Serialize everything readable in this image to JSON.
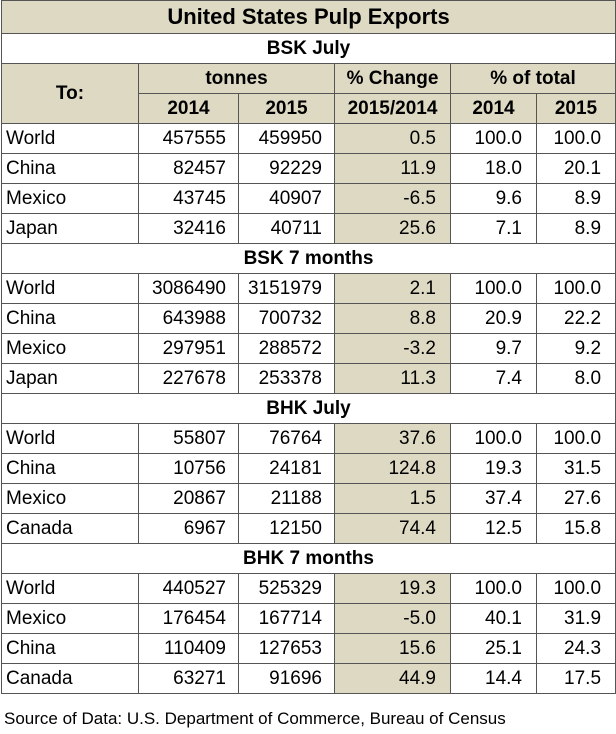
{
  "title": "United States Pulp Exports",
  "headers": {
    "to": "To:",
    "tonnes": "tonnes",
    "pct_change": "% Change",
    "pct_total": "% of total",
    "y2014": "2014",
    "y2015": "2015",
    "period": "2015/2014"
  },
  "sections": [
    {
      "name": "BSK July",
      "rows": [
        {
          "country": "World",
          "t2014": "457555",
          "t2015": "459950",
          "change": "0.5",
          "s2014": "100.0",
          "s2015": "100.0"
        },
        {
          "country": "China",
          "t2014": "82457",
          "t2015": "92229",
          "change": "11.9",
          "s2014": "18.0",
          "s2015": "20.1"
        },
        {
          "country": "Mexico",
          "t2014": "43745",
          "t2015": "40907",
          "change": "-6.5",
          "s2014": "9.6",
          "s2015": "8.9"
        },
        {
          "country": "Japan",
          "t2014": "32416",
          "t2015": "40711",
          "change": "25.6",
          "s2014": "7.1",
          "s2015": "8.9"
        }
      ]
    },
    {
      "name": "BSK 7 months",
      "rows": [
        {
          "country": "World",
          "t2014": "3086490",
          "t2015": "3151979",
          "change": "2.1",
          "s2014": "100.0",
          "s2015": "100.0"
        },
        {
          "country": "China",
          "t2014": "643988",
          "t2015": "700732",
          "change": "8.8",
          "s2014": "20.9",
          "s2015": "22.2"
        },
        {
          "country": "Mexico",
          "t2014": "297951",
          "t2015": "288572",
          "change": "-3.2",
          "s2014": "9.7",
          "s2015": "9.2"
        },
        {
          "country": "Japan",
          "t2014": "227678",
          "t2015": "253378",
          "change": "11.3",
          "s2014": "7.4",
          "s2015": "8.0"
        }
      ]
    },
    {
      "name": "BHK July",
      "rows": [
        {
          "country": "World",
          "t2014": "55807",
          "t2015": "76764",
          "change": "37.6",
          "s2014": "100.0",
          "s2015": "100.0"
        },
        {
          "country": "China",
          "t2014": "10756",
          "t2015": "24181",
          "change": "124.8",
          "s2014": "19.3",
          "s2015": "31.5"
        },
        {
          "country": "Mexico",
          "t2014": "20867",
          "t2015": "21188",
          "change": "1.5",
          "s2014": "37.4",
          "s2015": "27.6"
        },
        {
          "country": "Canada",
          "t2014": "6967",
          "t2015": "12150",
          "change": "74.4",
          "s2014": "12.5",
          "s2015": "15.8"
        }
      ]
    },
    {
      "name": "BHK 7 months",
      "rows": [
        {
          "country": "World",
          "t2014": "440527",
          "t2015": "525329",
          "change": "19.3",
          "s2014": "100.0",
          "s2015": "100.0"
        },
        {
          "country": "Mexico",
          "t2014": "176454",
          "t2015": "167714",
          "change": "-5.0",
          "s2014": "40.1",
          "s2015": "31.9"
        },
        {
          "country": "China",
          "t2014": "110409",
          "t2015": "127653",
          "change": "15.6",
          "s2014": "25.1",
          "s2015": "24.3"
        },
        {
          "country": "Canada",
          "t2014": "63271",
          "t2015": "91696",
          "change": "44.9",
          "s2014": "14.4",
          "s2015": "17.5"
        }
      ]
    }
  ],
  "source": "Source of Data: U.S. Department of Commerce, Bureau of Census"
}
